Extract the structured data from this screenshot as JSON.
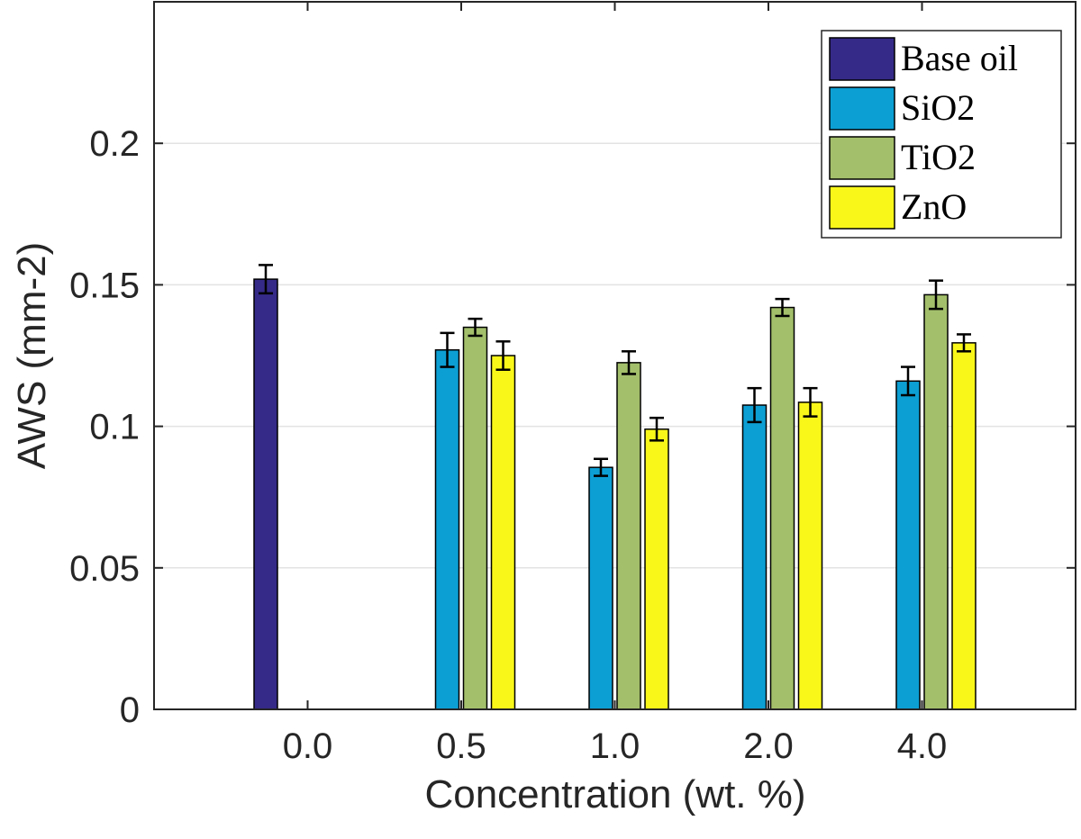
{
  "chart_data": {
    "type": "bar",
    "title": "",
    "xlabel": "Concentration (wt. %)",
    "ylabel": "AWS (mm-2)",
    "ylim": [
      0,
      0.25
    ],
    "yticks": [
      0,
      0.05,
      0.1,
      0.15,
      0.2
    ],
    "ytick_labels": [
      "0",
      "0.05",
      "0.1",
      "0.15",
      "0.2"
    ],
    "grid": "horizontal",
    "legend_position": "top-right",
    "categories": [
      "0.0",
      "0.5",
      "1.0",
      "2.0",
      "4.0"
    ],
    "series": [
      {
        "name": "Base oil",
        "color": "#352a87",
        "values": [
          0.152,
          0,
          0,
          0,
          0
        ],
        "errors": [
          0.005,
          0,
          0,
          0,
          0
        ]
      },
      {
        "name": "SiO2",
        "color": "#0c9fd4",
        "values": [
          0,
          0.127,
          0.0855,
          0.1075,
          0.116
        ],
        "errors": [
          0,
          0.006,
          0.003,
          0.006,
          0.005
        ]
      },
      {
        "name": "TiO2",
        "color": "#a3bf6b",
        "values": [
          0,
          0.135,
          0.1225,
          0.142,
          0.1465
        ],
        "errors": [
          0,
          0.003,
          0.004,
          0.003,
          0.005
        ]
      },
      {
        "name": "ZnO",
        "color": "#f9f719",
        "values": [
          0,
          0.125,
          0.099,
          0.1085,
          0.1295
        ],
        "errors": [
          0,
          0.005,
          0.004,
          0.005,
          0.003
        ]
      }
    ]
  }
}
